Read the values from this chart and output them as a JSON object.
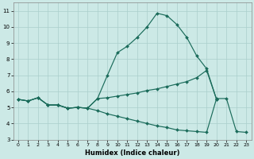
{
  "xlabel": "Humidex (Indice chaleur)",
  "background_color": "#cce9e6",
  "grid_color": "#aacfcc",
  "line_color": "#1a6b5a",
  "xlim": [
    -0.5,
    23.5
  ],
  "ylim": [
    3,
    11.5
  ],
  "xticks": [
    0,
    1,
    2,
    3,
    4,
    5,
    6,
    7,
    8,
    9,
    10,
    11,
    12,
    13,
    14,
    15,
    16,
    17,
    18,
    19,
    20,
    21,
    22,
    23
  ],
  "yticks": [
    3,
    4,
    5,
    6,
    7,
    8,
    9,
    10,
    11
  ],
  "curve_upper_x": [
    0,
    1,
    2,
    3,
    4,
    5,
    6,
    7,
    8,
    9,
    10,
    11,
    12,
    13,
    14,
    15,
    16,
    17,
    18,
    19,
    20
  ],
  "curve_upper_y": [
    5.5,
    5.4,
    5.6,
    5.15,
    5.15,
    4.95,
    5.0,
    4.95,
    5.55,
    7.0,
    8.4,
    8.8,
    9.35,
    10.0,
    10.85,
    10.7,
    10.15,
    9.35,
    8.2,
    7.4,
    5.5
  ],
  "curve_mid_x": [
    0,
    1,
    2,
    3,
    4,
    5,
    6,
    7,
    8,
    9,
    10,
    11,
    12,
    13,
    14,
    15,
    16,
    17,
    18,
    19,
    20
  ],
  "curve_mid_y": [
    5.5,
    5.4,
    5.6,
    5.15,
    5.15,
    4.95,
    5.0,
    4.95,
    5.55,
    5.6,
    5.7,
    5.8,
    5.9,
    6.05,
    6.15,
    6.3,
    6.45,
    6.6,
    6.85,
    7.3,
    5.5
  ],
  "curve_lower_x": [
    0,
    1,
    2,
    3,
    4,
    5,
    6,
    7,
    8,
    9,
    10,
    11,
    12,
    13,
    14,
    15,
    16,
    17,
    18,
    19,
    20,
    21,
    22,
    23
  ],
  "curve_lower_y": [
    5.5,
    5.4,
    5.6,
    5.15,
    5.15,
    4.95,
    5.0,
    4.95,
    4.8,
    4.6,
    4.45,
    4.3,
    4.15,
    4.0,
    3.85,
    3.75,
    3.6,
    3.55,
    3.5,
    3.45,
    5.55,
    5.55,
    3.5,
    3.45
  ]
}
